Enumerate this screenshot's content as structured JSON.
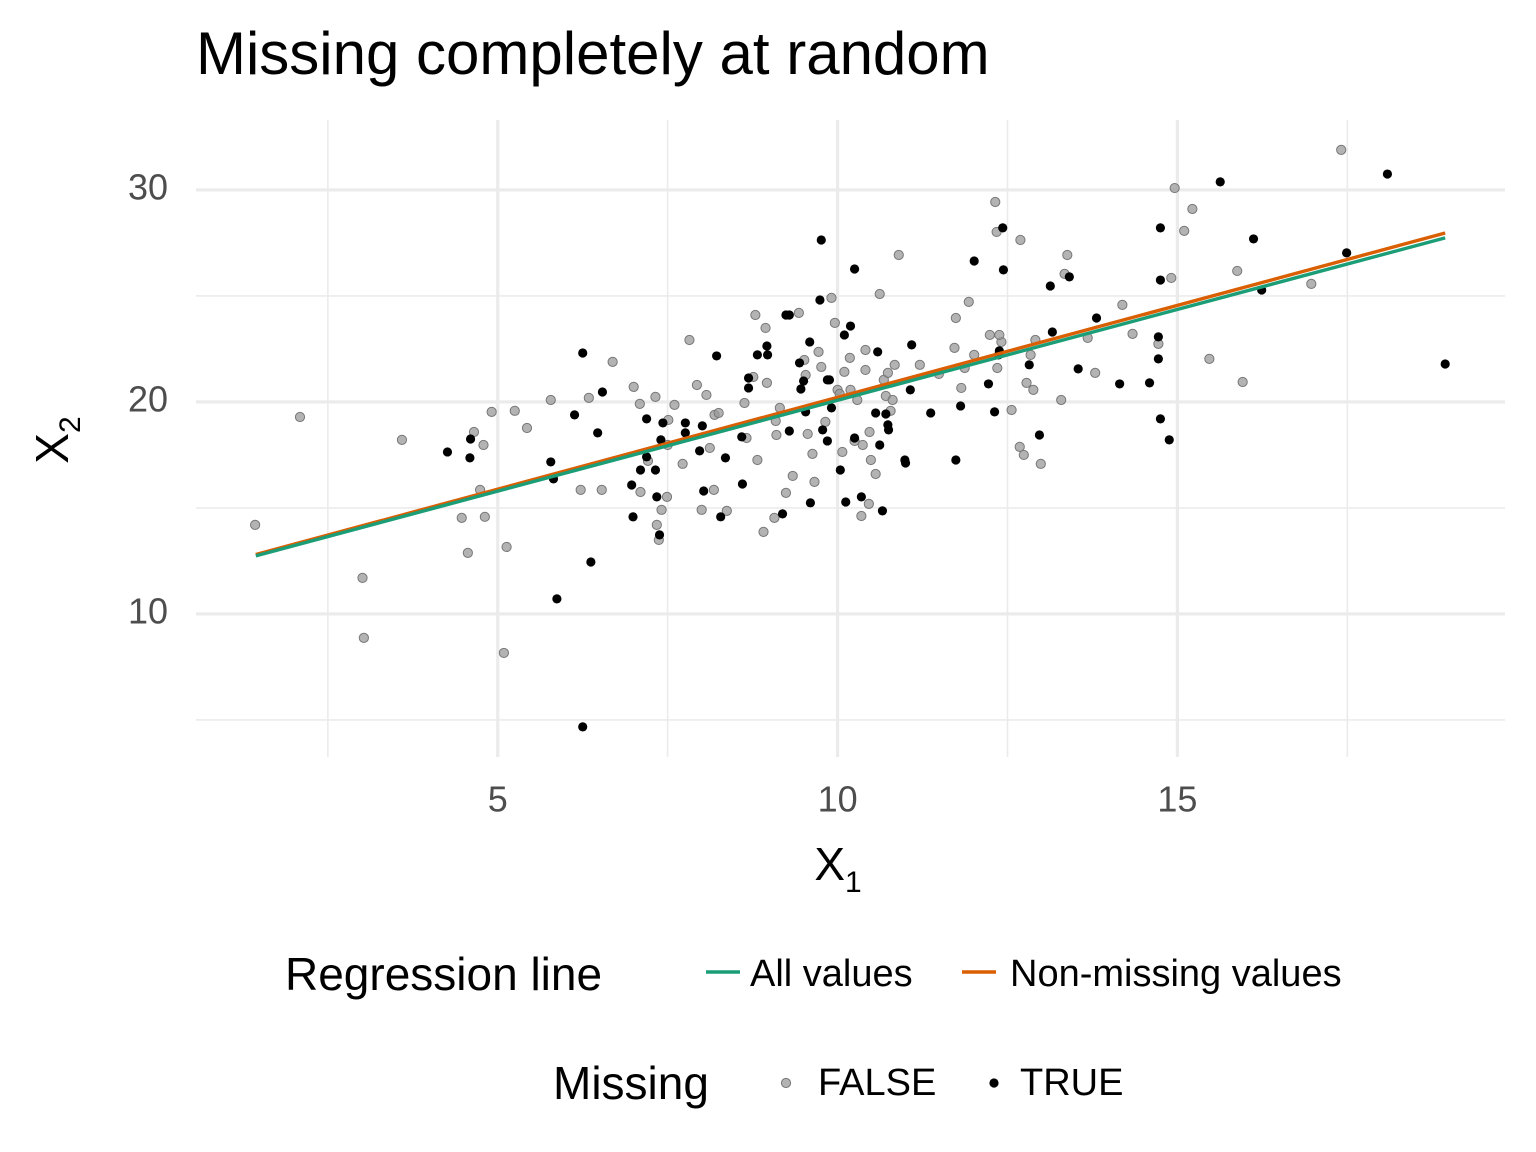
{
  "chart_data": {
    "type": "scatter",
    "title": "Missing completely at random",
    "xlabel": {
      "main": "X",
      "sub": "1"
    },
    "ylabel": {
      "main": "X",
      "sub": "2"
    },
    "xlim": [
      0.56,
      19.82
    ],
    "ylim": [
      3.25,
      33.3
    ],
    "xticks": [
      5,
      10,
      15
    ],
    "yticks": [
      10,
      20,
      30
    ],
    "x_minor_grid": [
      2.5,
      7.5,
      12.5,
      17.5
    ],
    "y_minor_grid": [
      5,
      15,
      25
    ],
    "grid": true,
    "point_legend_title": "Missing",
    "line_legend_title": "Regression line",
    "series": [
      {
        "name": "FALSE",
        "color": "#9a9a9a",
        "x": [
          1.43,
          2.09,
          3.01,
          3.03,
          3.59,
          4.47,
          4.56,
          4.65,
          4.74,
          4.79,
          4.81,
          4.91,
          5.09,
          5.13,
          5.25,
          5.43,
          5.78,
          6.22,
          6.34,
          6.53,
          6.69,
          7.0,
          7.09,
          7.1,
          7.21,
          7.32,
          7.34,
          7.37,
          7.41,
          7.49,
          7.5,
          7.51,
          7.6,
          7.72,
          7.82,
          7.93,
          8.0,
          8.07,
          8.12,
          8.18,
          8.19,
          8.25,
          8.37,
          8.63,
          8.66,
          8.76,
          8.79,
          8.82,
          8.91,
          8.94,
          8.96,
          9.07,
          9.09,
          9.1,
          9.15,
          9.24,
          9.34,
          9.43,
          9.51,
          9.53,
          9.56,
          9.63,
          9.66,
          9.72,
          9.76,
          9.82,
          9.91,
          9.96,
          10.0,
          10.03,
          10.07,
          10.1,
          10.18,
          10.19,
          10.25,
          10.29,
          10.35,
          10.37,
          10.41,
          10.41,
          10.46,
          10.47,
          10.49,
          10.56,
          10.62,
          10.68,
          10.71,
          10.74,
          10.78,
          10.81,
          10.84,
          10.9,
          11.21,
          11.49,
          11.72,
          11.74,
          11.82,
          11.87,
          11.93,
          12.01,
          12.24,
          12.32,
          12.35,
          12.41,
          12.56,
          12.68,
          12.69,
          12.74,
          12.78,
          12.84,
          12.88,
          12.91,
          12.99,
          13.29,
          13.34,
          13.38,
          13.68,
          13.79,
          14.19,
          14.34,
          14.72,
          14.91,
          14.96,
          15.1,
          15.22,
          15.47,
          15.88,
          15.96,
          16.97,
          17.41,
          12.34,
          12.38
        ],
        "values": [
          14.2,
          19.29,
          11.7,
          8.87,
          18.21,
          14.53,
          12.88,
          18.58,
          15.85,
          17.97,
          14.58,
          19.53,
          8.16,
          13.16,
          19.58,
          18.77,
          20.09,
          15.85,
          20.19,
          15.85,
          21.89,
          20.71,
          19.91,
          15.75,
          17.22,
          20.24,
          14.2,
          13.49,
          14.91,
          15.52,
          17.97,
          19.15,
          19.86,
          17.08,
          22.92,
          20.8,
          14.91,
          20.33,
          17.83,
          15.85,
          19.39,
          19.48,
          14.86,
          19.95,
          18.3,
          21.18,
          24.1,
          17.26,
          13.87,
          23.49,
          20.9,
          14.53,
          19.1,
          18.44,
          19.72,
          15.71,
          16.51,
          24.2,
          21.98,
          21.27,
          18.49,
          17.55,
          16.23,
          22.36,
          21.65,
          19.06,
          24.91,
          23.73,
          20.57,
          20.38,
          17.64,
          21.42,
          22.08,
          20.57,
          18.16,
          20.09,
          14.62,
          17.97,
          21.51,
          22.45,
          15.19,
          18.58,
          17.26,
          16.6,
          25.09,
          21.04,
          20.28,
          21.37,
          19.58,
          20.09,
          21.75,
          26.93,
          21.75,
          21.32,
          22.55,
          23.96,
          20.66,
          21.6,
          24.72,
          22.22,
          23.16,
          29.43,
          21.6,
          22.83,
          19.62,
          17.88,
          27.64,
          17.5,
          20.9,
          22.22,
          20.57,
          22.92,
          17.08,
          20.09,
          26.04,
          26.93,
          23.02,
          21.37,
          24.58,
          23.21,
          22.74,
          25.85,
          30.09,
          28.07,
          29.1,
          22.03,
          26.18,
          20.94,
          25.57,
          31.89,
          28.02,
          23.16
        ]
      },
      {
        "name": "TRUE",
        "color": "#000000",
        "x": [
          4.26,
          4.6,
          4.59,
          6.25,
          6.13,
          6.54,
          6.47,
          5.78,
          5.82,
          5.87,
          6.37,
          6.25,
          6.97,
          6.99,
          7.1,
          7.19,
          7.19,
          7.34,
          7.4,
          7.38,
          7.32,
          7.43,
          7.76,
          7.76,
          8.01,
          8.03,
          7.97,
          8.22,
          8.35,
          8.28,
          8.59,
          8.6,
          8.69,
          8.69,
          8.82,
          8.96,
          8.97,
          9.24,
          9.29,
          9.29,
          9.19,
          9.44,
          9.46,
          9.5,
          9.53,
          9.59,
          9.6,
          9.74,
          9.76,
          9.78,
          9.85,
          9.85,
          9.91,
          9.88,
          10.04,
          10.12,
          10.1,
          10.19,
          10.25,
          10.25,
          10.35,
          10.59,
          10.56,
          10.62,
          10.66,
          10.71,
          10.75,
          10.74,
          10.99,
          11.0,
          11.07,
          11.09,
          11.37,
          11.74,
          11.81,
          12.01,
          12.22,
          12.31,
          12.37,
          12.43,
          12.44,
          12.82,
          12.97,
          13.13,
          13.16,
          13.41,
          13.54,
          13.81,
          14.15,
          14.59,
          14.72,
          14.72,
          14.75,
          14.75,
          14.75,
          14.88,
          15.63,
          16.12,
          16.24,
          17.49,
          18.09,
          18.94,
          12.38
        ],
        "values": [
          17.64,
          18.25,
          17.36,
          22.31,
          19.39,
          20.47,
          18.54,
          17.17,
          16.37,
          10.71,
          12.45,
          4.67,
          16.08,
          14.58,
          16.79,
          19.2,
          17.41,
          15.52,
          18.21,
          13.73,
          16.79,
          19.01,
          18.54,
          19.01,
          18.87,
          15.8,
          17.69,
          22.17,
          17.36,
          14.58,
          18.35,
          16.13,
          20.66,
          21.13,
          22.22,
          22.64,
          22.22,
          24.1,
          24.1,
          18.63,
          14.72,
          21.84,
          20.61,
          20.99,
          19.53,
          22.83,
          15.24,
          24.81,
          27.64,
          18.68,
          21.04,
          18.16,
          19.72,
          21.04,
          16.79,
          15.28,
          23.16,
          23.58,
          26.27,
          18.3,
          15.52,
          22.36,
          19.48,
          17.97,
          14.86,
          19.43,
          18.68,
          18.92,
          17.26,
          17.12,
          20.57,
          22.69,
          19.48,
          17.26,
          19.81,
          26.65,
          20.85,
          19.53,
          22.22,
          28.21,
          26.23,
          21.75,
          18.44,
          25.47,
          23.3,
          25.9,
          21.56,
          23.96,
          20.85,
          20.9,
          23.07,
          22.03,
          25.75,
          28.21,
          19.2,
          18.21,
          30.38,
          27.69,
          25.28,
          27.03,
          30.75,
          21.79,
          22.41
        ]
      }
    ],
    "lines": [
      {
        "name": "All values",
        "color": "#1b9e77",
        "x": [
          1.44,
          18.94
        ],
        "values": [
          12.74,
          27.74
        ]
      },
      {
        "name": "Non-missing values",
        "color": "#d95f02",
        "x": [
          1.44,
          18.94
        ],
        "values": [
          12.8,
          27.97
        ]
      }
    ]
  }
}
